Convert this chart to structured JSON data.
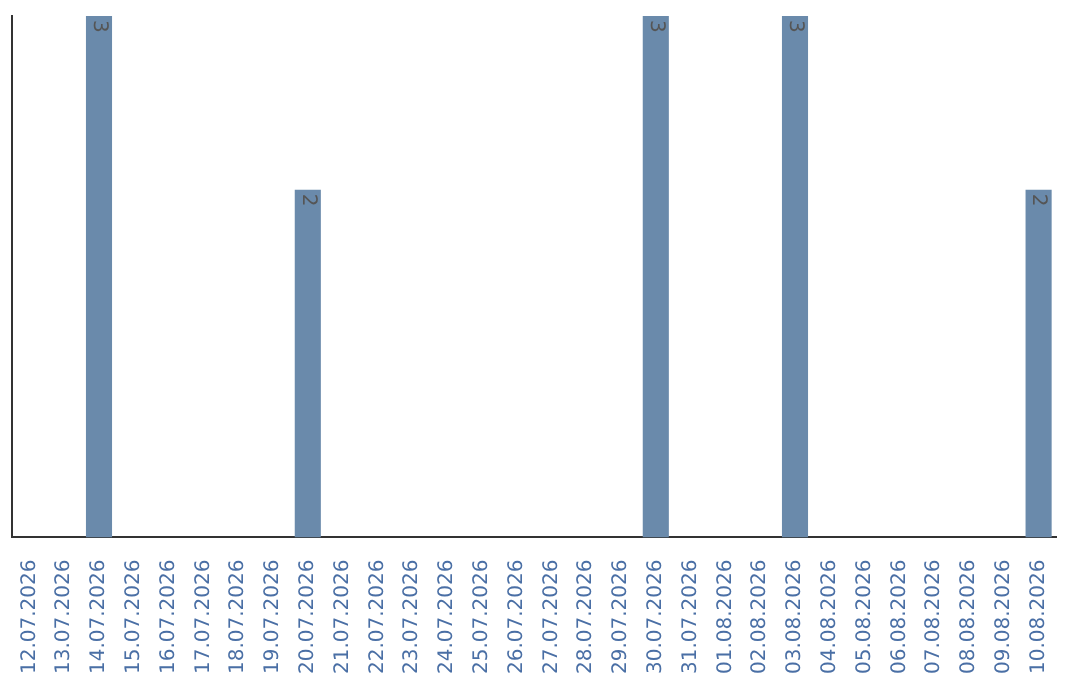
{
  "chart_data": {
    "type": "bar",
    "categories": [
      "12.07.2026",
      "13.07.2026",
      "14.07.2026",
      "15.07.2026",
      "16.07.2026",
      "17.07.2026",
      "18.07.2026",
      "19.07.2026",
      "20.07.2026",
      "21.07.2026",
      "22.07.2026",
      "23.07.2026",
      "24.07.2026",
      "25.07.2026",
      "26.07.2026",
      "27.07.2026",
      "28.07.2026",
      "29.07.2026",
      "30.07.2026",
      "31.07.2026",
      "01.08.2026",
      "02.08.2026",
      "03.08.2026",
      "04.08.2026",
      "05.08.2026",
      "06.08.2026",
      "07.08.2026",
      "08.08.2026",
      "09.08.2026",
      "10.08.2026"
    ],
    "values": [
      0,
      0,
      3,
      0,
      0,
      0,
      0,
      0,
      2,
      0,
      0,
      0,
      0,
      0,
      0,
      0,
      0,
      0,
      3,
      0,
      0,
      0,
      3,
      0,
      0,
      0,
      0,
      0,
      0,
      2
    ],
    "value_labels": [
      null,
      null,
      "3",
      null,
      null,
      null,
      null,
      null,
      "2",
      null,
      null,
      null,
      null,
      null,
      null,
      null,
      null,
      null,
      "3",
      null,
      null,
      null,
      "3",
      null,
      null,
      null,
      null,
      null,
      null,
      "2"
    ],
    "color": "#6a8aab",
    "tick_labels": "x",
    "grid": false,
    "legend": false
  }
}
